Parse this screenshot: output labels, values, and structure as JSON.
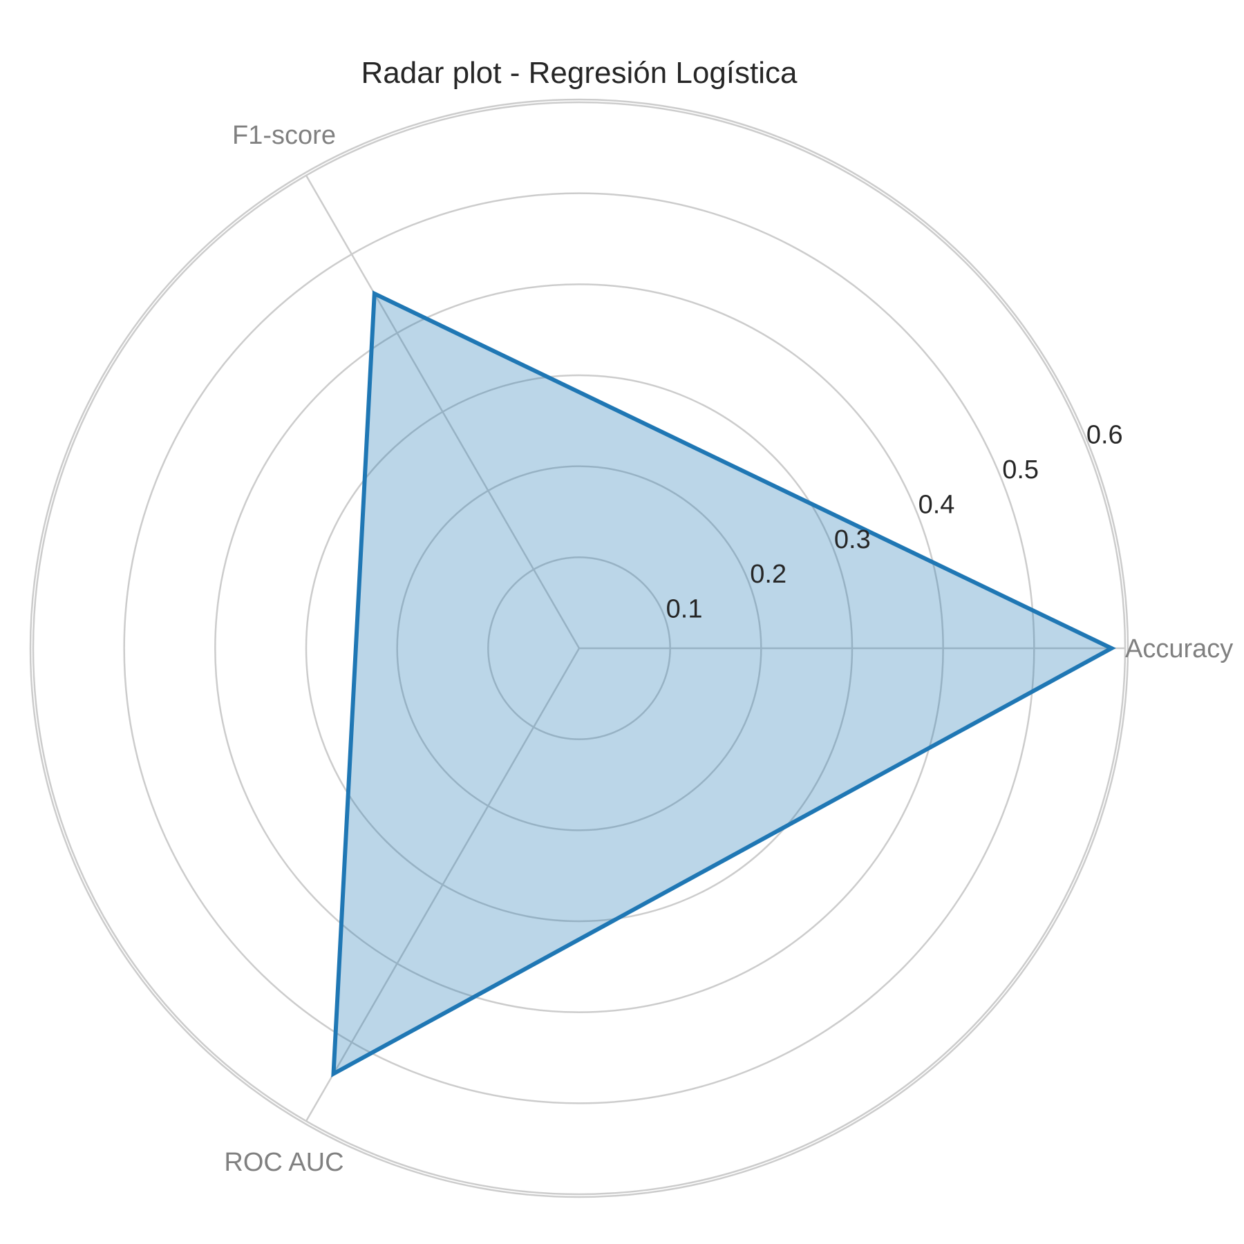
{
  "chart_data": {
    "type": "radar",
    "title": "Radar plot - Regresión Logística",
    "categories": [
      "Accuracy",
      "F1-score",
      "ROC AUC"
    ],
    "series": [
      {
        "values": [
          0.585,
          0.45,
          0.54
        ],
        "color": "#1f77b4"
      }
    ],
    "rlim": [
      0,
      0.6
    ],
    "rticks": [
      0.1,
      0.2,
      0.3,
      0.4,
      0.5,
      0.6
    ],
    "rtick_labels": [
      "0.1",
      "0.2",
      "0.3",
      "0.4",
      "0.5",
      "0.6"
    ],
    "grid": true,
    "colors": {
      "line": "#1f77b4",
      "fill": "#1f77b4",
      "grid": "#cccccc"
    }
  }
}
